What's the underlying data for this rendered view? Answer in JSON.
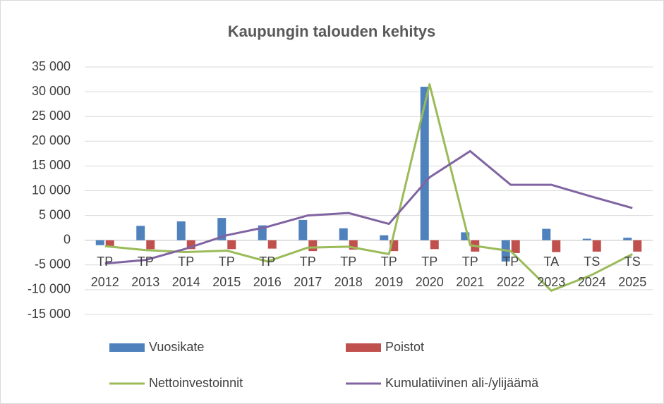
{
  "chart_data": {
    "type": "bar-line",
    "title": "Kaupungin talouden kehitys",
    "categories": [
      [
        "TP",
        "2012"
      ],
      [
        "TP",
        "2013"
      ],
      [
        "TP",
        "2014"
      ],
      [
        "TP",
        "2015"
      ],
      [
        "TP",
        "2016"
      ],
      [
        "TP",
        "2017"
      ],
      [
        "TP",
        "2018"
      ],
      [
        "TP",
        "2019"
      ],
      [
        "TP",
        "2020"
      ],
      [
        "TP",
        "2021"
      ],
      [
        "TP",
        "2022"
      ],
      [
        "TA",
        "2023"
      ],
      [
        "TS",
        "2024"
      ],
      [
        "TS",
        "2025"
      ]
    ],
    "series": [
      {
        "name": "Vuosikate",
        "type": "bar",
        "color": "#4f81bd",
        "values": [
          -1000,
          2900,
          3800,
          4500,
          3000,
          4100,
          2400,
          1000,
          31000,
          1600,
          -4300,
          2300,
          300,
          500
        ]
      },
      {
        "name": "Poistot",
        "type": "bar",
        "color": "#c0504d",
        "values": [
          -1200,
          -1800,
          -1800,
          -1800,
          -1700,
          -2200,
          -1900,
          -2200,
          -1800,
          -2300,
          -2600,
          -2400,
          -2300,
          -2300
        ]
      },
      {
        "name": "Nettoinvestoinnit",
        "type": "line",
        "color": "#9bbb59",
        "values": [
          -1200,
          -2000,
          -2400,
          -2100,
          -4300,
          -1500,
          -1300,
          -2800,
          31500,
          -1000,
          -2200,
          -10200,
          -7000,
          -2800
        ]
      },
      {
        "name": "Kumulatiivinen ali-/ylijäämä",
        "type": "line",
        "color": "#8064a2",
        "values": [
          -4700,
          -4000,
          -1700,
          1000,
          2700,
          5000,
          5500,
          3300,
          12700,
          18000,
          11200,
          11200,
          8800,
          6500
        ]
      }
    ],
    "ylim": [
      -15000,
      35000
    ],
    "yticks": [
      {
        "value": -15000,
        "label": "-15 000"
      },
      {
        "value": -10000,
        "label": "-10 000"
      },
      {
        "value": -5000,
        "label": "-5 000"
      },
      0,
      {
        "value": 5000,
        "label": "5 000"
      },
      {
        "value": 10000,
        "label": "10 000"
      },
      {
        "value": 15000,
        "label": "15 000"
      },
      {
        "value": 20000,
        "label": "20 000"
      },
      {
        "value": 25000,
        "label": "25 000"
      },
      {
        "value": 30000,
        "label": "30 000"
      },
      {
        "value": 35000,
        "label": "35 000"
      }
    ],
    "grid": true
  }
}
